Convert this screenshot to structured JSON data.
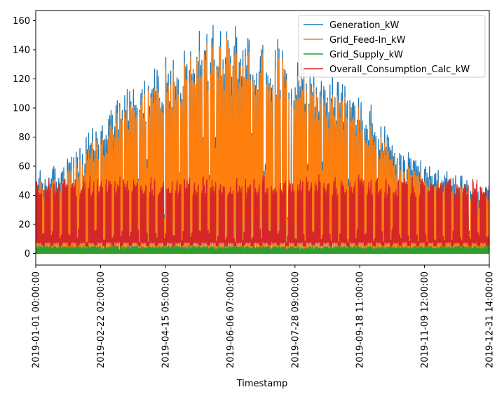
{
  "chart_data": {
    "type": "line",
    "xlabel": "Timestamp",
    "ylabel": "",
    "title": "",
    "ylim": [
      -8,
      167
    ],
    "xlim": [
      "2019-01-01 00:00:00",
      "2019-12-31 14:00:00"
    ],
    "y_ticks": [
      "0",
      "20",
      "40",
      "60",
      "80",
      "100",
      "120",
      "140",
      "160"
    ],
    "y_tick_values": [
      0,
      20,
      40,
      60,
      80,
      100,
      120,
      140,
      160
    ],
    "x_ticks": [
      "2019-01-01 00:00:00",
      "2019-02-22 02:00:00",
      "2019-04-15 05:00:00",
      "2019-06-06 07:00:00",
      "2019-07-28 09:00:00",
      "2019-09-18 11:00:00",
      "2019-11-09 12:00:00",
      "2019-12-31 14:00:00"
    ],
    "grid": false,
    "legend_position": "top-right",
    "series": [
      {
        "name": "Generation_kW",
        "color": "#1f77b4",
        "envelope_peak_kW": [
          [
            "2019-01-01",
            55
          ],
          [
            "2019-01-15",
            60
          ],
          [
            "2019-02-01",
            70
          ],
          [
            "2019-02-22",
            92
          ],
          [
            "2019-03-15",
            112
          ],
          [
            "2019-04-15",
            132
          ],
          [
            "2019-05-10",
            150
          ],
          [
            "2019-06-06",
            155
          ],
          [
            "2019-06-25",
            153
          ],
          [
            "2019-07-15",
            145
          ],
          [
            "2019-07-28",
            140
          ],
          [
            "2019-08-20",
            125
          ],
          [
            "2019-09-18",
            110
          ],
          [
            "2019-10-10",
            85
          ],
          [
            "2019-11-09",
            60
          ],
          [
            "2019-12-01",
            55
          ],
          [
            "2019-12-31",
            45
          ]
        ]
      },
      {
        "name": "Grid_Feed-In_kW",
        "color": "#ff7f0e",
        "envelope_peak_kW": [
          [
            "2019-01-01",
            48
          ],
          [
            "2019-01-15",
            52
          ],
          [
            "2019-02-01",
            62
          ],
          [
            "2019-02-22",
            82
          ],
          [
            "2019-03-15",
            104
          ],
          [
            "2019-04-15",
            125
          ],
          [
            "2019-05-10",
            143
          ],
          [
            "2019-06-06",
            147
          ],
          [
            "2019-06-25",
            145
          ],
          [
            "2019-07-15",
            138
          ],
          [
            "2019-07-28",
            132
          ],
          [
            "2019-08-20",
            117
          ],
          [
            "2019-09-18",
            100
          ],
          [
            "2019-10-10",
            76
          ],
          [
            "2019-11-09",
            52
          ],
          [
            "2019-12-01",
            47
          ],
          [
            "2019-12-31",
            38
          ]
        ]
      },
      {
        "name": "Grid_Supply_kW",
        "color": "#2ca02c",
        "typical_range_kW": [
          0,
          5
        ]
      },
      {
        "name": "Overall_Consumption_Calc_kW",
        "color": "#d62728",
        "typical_range_kW": [
          5,
          55
        ]
      }
    ]
  }
}
